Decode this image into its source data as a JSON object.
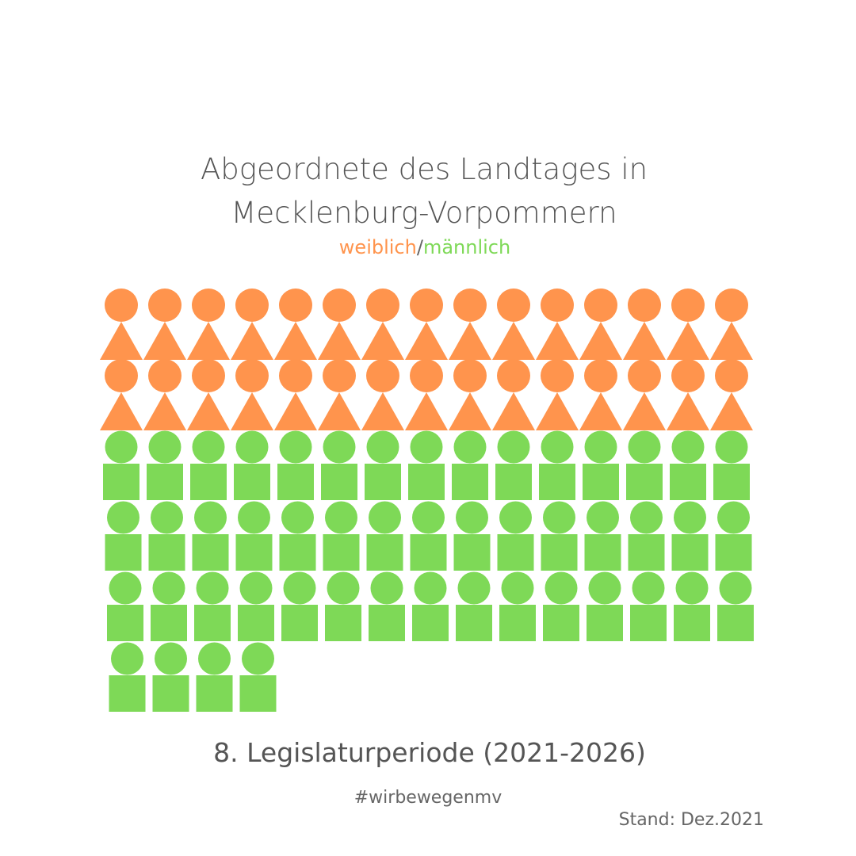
{
  "chart_data": {
    "type": "pictogram",
    "title_line1": "Abgeordnete des Landtages in",
    "title_line2": "Mecklenburg-Vorpommern",
    "legend": {
      "female_label": "weiblich",
      "separator": "/",
      "male_label": "männlich",
      "placement": "top"
    },
    "series": [
      {
        "name": "weiblich",
        "value": 30,
        "color": "#FF944D",
        "shape": "circle-over-triangle"
      },
      {
        "name": "männlich",
        "value": 49,
        "color": "#7ED957",
        "shape": "circle-over-square"
      }
    ],
    "icons_per_row": 15,
    "caption": "8. Legislaturperiode (2021-2026)"
  },
  "footer": {
    "hashtag": "#wirbewegenmv",
    "stand": "Stand: Dez.2021"
  }
}
